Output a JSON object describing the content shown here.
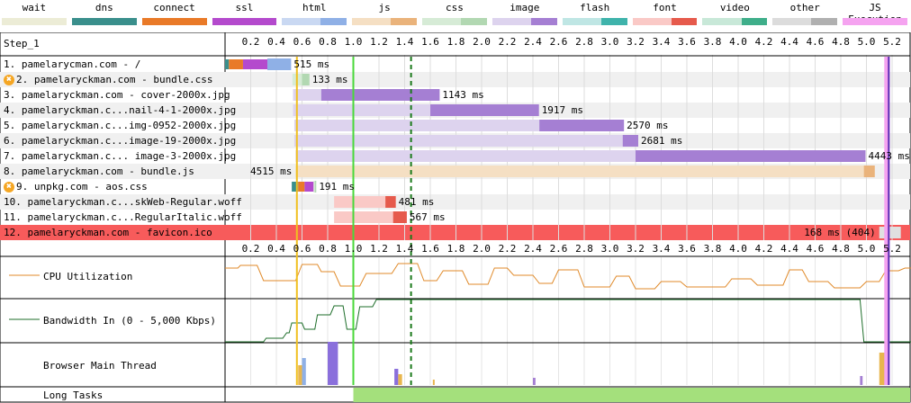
{
  "legend": [
    {
      "label": "wait",
      "color": "#ececd6",
      "dl": null
    },
    {
      "label": "dns",
      "color": "#3a8f8c",
      "dl": null
    },
    {
      "label": "connect",
      "color": "#e97a28",
      "dl": null
    },
    {
      "label": "ssl",
      "color": "#b44acd",
      "dl": null
    },
    {
      "label": "html",
      "color": "#c9d8f2",
      "dl": "#8fb0e6"
    },
    {
      "label": "js",
      "color": "#f5dfc3",
      "dl": "#eab37b"
    },
    {
      "label": "css",
      "color": "#d6ebd6",
      "dl": "#b2d8b2"
    },
    {
      "label": "image",
      "color": "#ddd3ee",
      "dl": "#a57fd3"
    },
    {
      "label": "flash",
      "color": "#bfe6e4",
      "dl": "#3fb3ab"
    },
    {
      "label": "font",
      "color": "#fac9c6",
      "dl": "#e65a4c"
    },
    {
      "label": "video",
      "color": "#c8e8d8",
      "dl": "#3fae8a"
    },
    {
      "label": "other",
      "color": "#dcdcdc",
      "dl": "#b0b0b0"
    },
    {
      "label": "JS Execution",
      "color": "#f5a3f0",
      "dl": null
    }
  ],
  "step_label": "Step_1",
  "ticks": [
    "0.2",
    "0.4",
    "0.6",
    "0.8",
    "1.0",
    "1.2",
    "1.4",
    "1.6",
    "1.8",
    "2.0",
    "2.2",
    "2.4",
    "2.6",
    "2.8",
    "3.0",
    "3.2",
    "3.4",
    "3.6",
    "3.8",
    "4.0",
    "4.2",
    "4.4",
    "4.6",
    "4.8",
    "5.0",
    "5.2"
  ],
  "requests": [
    {
      "label": "1. pamelarycman.com - /",
      "warn": false,
      "type": "html",
      "start": 0.0,
      "end": 0.515,
      "dl_start": 0.33,
      "time": "515 ms",
      "label_pos": "right",
      "error": false
    },
    {
      "label": "2. pamelaryckman.com - bundle.css",
      "warn": true,
      "type": "css",
      "start": 0.525,
      "end": 0.658,
      "dl_start": 0.6,
      "time": "133 ms",
      "label_pos": "right",
      "error": false
    },
    {
      "label": "3. pamelaryckman.com - cover-2000x.jpg",
      "warn": false,
      "type": "image",
      "start": 0.53,
      "end": 1.673,
      "dl_start": 0.75,
      "time": "1143 ms",
      "label_pos": "right",
      "error": false
    },
    {
      "label": "4. pamelaryckman.c...nail-4-1-2000x.jpg",
      "warn": false,
      "type": "image",
      "start": 0.53,
      "end": 2.447,
      "dl_start": 1.6,
      "time": "1917 ms",
      "label_pos": "right",
      "error": false
    },
    {
      "label": "5. pamelaryckman.c...img-0952-2000x.jpg",
      "warn": false,
      "type": "image",
      "start": 0.54,
      "end": 3.11,
      "dl_start": 2.45,
      "time": "2570 ms",
      "label_pos": "right",
      "error": false
    },
    {
      "label": "6. pamelaryckman.c...image-19-2000x.jpg",
      "warn": false,
      "type": "image",
      "start": 0.54,
      "end": 3.221,
      "dl_start": 3.1,
      "time": "2681 ms",
      "label_pos": "right",
      "error": false
    },
    {
      "label": "7. pamelaryckman.c... image-3-2000x.jpg",
      "warn": false,
      "type": "image",
      "start": 0.55,
      "end": 4.993,
      "dl_start": 3.2,
      "time": "4443 ms",
      "label_pos": "right",
      "error": false
    },
    {
      "label": "8. pamelaryckman.com - bundle.js",
      "warn": false,
      "type": "js",
      "start": 0.55,
      "end": 5.065,
      "dl_start": 4.98,
      "time": "4515 ms",
      "label_pos": "left",
      "error": false
    },
    {
      "label": "9. unpkg.com - aos.css",
      "warn": true,
      "type": "css",
      "start": 0.52,
      "end": 0.711,
      "dl_start": 0.7,
      "time": "191 ms",
      "label_pos": "right",
      "error": false
    },
    {
      "label": "10. pamelaryckman.c...skWeb-Regular.woff",
      "warn": false,
      "type": "font",
      "start": 0.85,
      "end": 1.331,
      "dl_start": 1.25,
      "time": "481 ms",
      "label_pos": "right",
      "error": false
    },
    {
      "label": "11. pamelaryckman.c...RegularItalic.woff",
      "warn": false,
      "type": "font",
      "start": 0.85,
      "end": 1.417,
      "dl_start": 1.31,
      "time": "567 ms",
      "label_pos": "right",
      "error": false
    },
    {
      "label": "12. pamelaryckman.com - favicon.ico",
      "warn": false,
      "type": "other",
      "start": 5.1,
      "end": 5.268,
      "dl_start": 5.26,
      "time": "168 ms (404)",
      "label_pos": "left",
      "error": true
    }
  ],
  "graphs": {
    "cpu": "CPU Utilization",
    "bandwidth": "Bandwidth In (0 - 5,000 Kbps)",
    "main_thread": "Browser Main Thread",
    "long_tasks": "Long Tasks"
  },
  "markers": {
    "start_render": 0.56,
    "dom_content_loaded": 1.0,
    "on_load": 1.45,
    "js_exec": 5.16
  }
}
